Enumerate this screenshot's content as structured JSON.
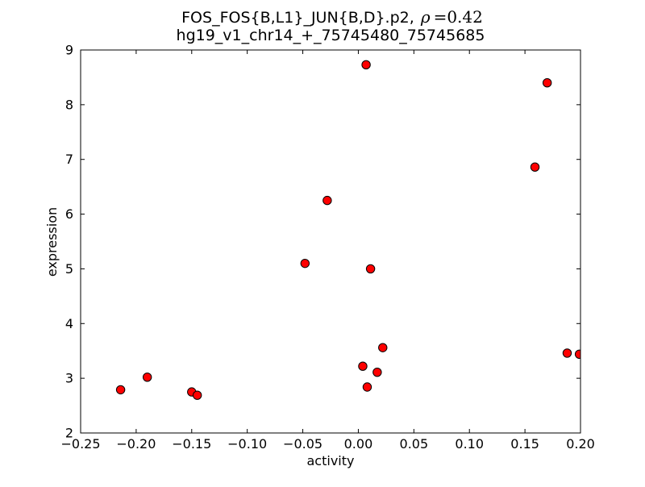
{
  "figure": {
    "background": "#ffffff",
    "frame_color": "#000000",
    "text_color": "#000000"
  },
  "chart_data": {
    "type": "scatter",
    "title": {
      "line1_prefix": "FOS_FOS{B,L1}_JUN{B,D}.p2, ",
      "line1_rho": "ρ",
      "line1_eq": "=0.42",
      "line2": "hg19_v1_chr14_+_75745480_75745685"
    },
    "xlabel": "activity",
    "ylabel": "expression",
    "xlim": [
      -0.25,
      0.2
    ],
    "ylim": [
      2,
      9
    ],
    "x_ticks": [
      -0.25,
      -0.2,
      -0.15,
      -0.1,
      -0.05,
      0.0,
      0.05,
      0.1,
      0.15,
      0.2
    ],
    "x_tick_labels": [
      "−0.25",
      "−0.20",
      "−0.15",
      "−0.10",
      "−0.05",
      "0.00",
      "0.05",
      "0.10",
      "0.15",
      "0.20"
    ],
    "y_ticks": [
      2,
      3,
      4,
      5,
      6,
      7,
      8,
      9
    ],
    "y_tick_labels": [
      "2",
      "3",
      "4",
      "5",
      "6",
      "7",
      "8",
      "9"
    ],
    "grid": false,
    "legend": "none",
    "series": [
      {
        "name": "samples",
        "marker": "circle",
        "marker_color": "#ff0000",
        "marker_edge_color": "#000000",
        "marker_radius": 5.2,
        "points": [
          [
            -0.214,
            2.79
          ],
          [
            -0.19,
            3.02
          ],
          [
            -0.15,
            2.75
          ],
          [
            -0.145,
            2.69
          ],
          [
            -0.048,
            5.1
          ],
          [
            -0.028,
            6.25
          ],
          [
            0.007,
            8.73
          ],
          [
            0.011,
            5.0
          ],
          [
            0.004,
            3.22
          ],
          [
            0.008,
            2.84
          ],
          [
            0.017,
            3.11
          ],
          [
            0.022,
            3.56
          ],
          [
            0.159,
            6.86
          ],
          [
            0.17,
            8.4
          ],
          [
            0.188,
            3.46
          ],
          [
            0.199,
            3.44
          ]
        ]
      }
    ]
  }
}
